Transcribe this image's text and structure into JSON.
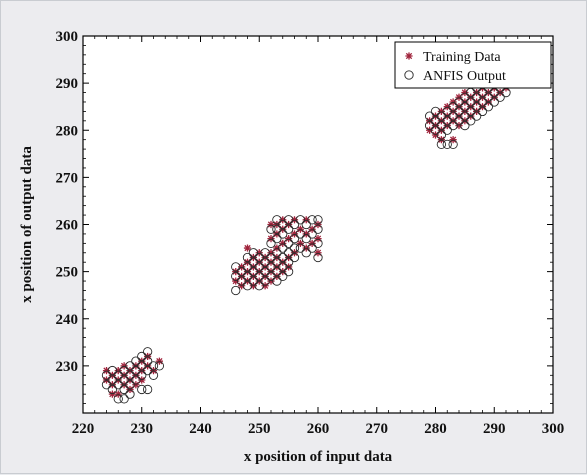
{
  "chart_data": {
    "type": "scatter",
    "xlabel": "x position of input data",
    "ylabel": "x position of output data",
    "xlim": [
      220,
      300
    ],
    "ylim": [
      220,
      300
    ],
    "xticks": [
      220,
      230,
      240,
      250,
      260,
      270,
      280,
      290,
      300
    ],
    "yticks": [
      230,
      240,
      250,
      260,
      270,
      280,
      290,
      300
    ],
    "grid": false,
    "legend_position": "top-right",
    "series": [
      {
        "name": "Training Data",
        "marker": "asterisk",
        "color": "#a0243c",
        "points": [
          [
            224,
            229
          ],
          [
            224,
            227
          ],
          [
            225,
            226
          ],
          [
            225,
            228
          ],
          [
            226,
            227
          ],
          [
            226,
            229
          ],
          [
            227,
            226
          ],
          [
            227,
            228
          ],
          [
            227,
            230
          ],
          [
            228,
            227
          ],
          [
            228,
            229
          ],
          [
            229,
            228
          ],
          [
            229,
            230
          ],
          [
            229,
            226
          ],
          [
            230,
            229
          ],
          [
            230,
            231
          ],
          [
            230,
            227
          ],
          [
            231,
            230
          ],
          [
            231,
            232
          ],
          [
            232,
            229
          ],
          [
            233,
            231
          ],
          [
            225,
            224
          ],
          [
            226,
            224
          ],
          [
            228,
            225
          ],
          [
            246,
            248
          ],
          [
            246,
            250
          ],
          [
            247,
            247
          ],
          [
            247,
            249
          ],
          [
            247,
            251
          ],
          [
            248,
            248
          ],
          [
            248,
            250
          ],
          [
            248,
            252
          ],
          [
            248,
            255
          ],
          [
            249,
            247
          ],
          [
            249,
            249
          ],
          [
            249,
            251
          ],
          [
            249,
            253
          ],
          [
            250,
            248
          ],
          [
            250,
            250
          ],
          [
            250,
            252
          ],
          [
            250,
            254
          ],
          [
            251,
            247
          ],
          [
            251,
            249
          ],
          [
            251,
            251
          ],
          [
            251,
            253
          ],
          [
            252,
            248
          ],
          [
            252,
            250
          ],
          [
            252,
            252
          ],
          [
            252,
            254
          ],
          [
            252,
            257
          ],
          [
            252,
            260
          ],
          [
            253,
            249
          ],
          [
            253,
            251
          ],
          [
            253,
            253
          ],
          [
            253,
            255
          ],
          [
            253,
            258
          ],
          [
            253,
            260
          ],
          [
            254,
            250
          ],
          [
            254,
            252
          ],
          [
            254,
            256
          ],
          [
            254,
            259
          ],
          [
            254,
            261
          ],
          [
            255,
            251
          ],
          [
            255,
            253
          ],
          [
            255,
            257
          ],
          [
            255,
            260
          ],
          [
            256,
            254
          ],
          [
            256,
            258
          ],
          [
            256,
            261
          ],
          [
            257,
            256
          ],
          [
            257,
            259
          ],
          [
            258,
            255
          ],
          [
            258,
            258
          ],
          [
            258,
            261
          ],
          [
            259,
            256
          ],
          [
            259,
            259
          ],
          [
            260,
            254
          ],
          [
            260,
            257
          ],
          [
            260,
            260
          ],
          [
            279,
            280
          ],
          [
            279,
            282
          ],
          [
            280,
            279
          ],
          [
            280,
            281
          ],
          [
            280,
            283
          ],
          [
            281,
            280
          ],
          [
            281,
            282
          ],
          [
            281,
            284
          ],
          [
            282,
            281
          ],
          [
            282,
            283
          ],
          [
            282,
            285
          ],
          [
            283,
            282
          ],
          [
            283,
            284
          ],
          [
            283,
            286
          ],
          [
            284,
            281
          ],
          [
            284,
            283
          ],
          [
            284,
            285
          ],
          [
            284,
            287
          ],
          [
            285,
            282
          ],
          [
            285,
            284
          ],
          [
            285,
            286
          ],
          [
            285,
            288
          ],
          [
            286,
            283
          ],
          [
            286,
            285
          ],
          [
            286,
            287
          ],
          [
            287,
            284
          ],
          [
            287,
            286
          ],
          [
            287,
            288
          ],
          [
            288,
            285
          ],
          [
            288,
            287
          ],
          [
            288,
            289
          ],
          [
            289,
            286
          ],
          [
            289,
            288
          ],
          [
            290,
            287
          ],
          [
            290,
            289
          ],
          [
            291,
            288
          ],
          [
            292,
            289
          ],
          [
            281,
            278
          ],
          [
            283,
            278
          ],
          [
            289,
            290
          ]
        ]
      },
      {
        "name": "ANFIS Output",
        "marker": "circle",
        "color": "#2a2a2a",
        "points": [
          [
            224,
            226
          ],
          [
            224,
            228
          ],
          [
            225,
            225
          ],
          [
            225,
            227
          ],
          [
            225,
            229
          ],
          [
            226,
            226
          ],
          [
            226,
            228
          ],
          [
            227,
            225
          ],
          [
            227,
            227
          ],
          [
            227,
            229
          ],
          [
            228,
            226
          ],
          [
            228,
            228
          ],
          [
            228,
            230
          ],
          [
            229,
            227
          ],
          [
            229,
            229
          ],
          [
            229,
            231
          ],
          [
            230,
            228
          ],
          [
            230,
            230
          ],
          [
            230,
            232
          ],
          [
            230,
            225
          ],
          [
            231,
            229
          ],
          [
            231,
            231
          ],
          [
            231,
            233
          ],
          [
            232,
            228
          ],
          [
            232,
            230
          ],
          [
            233,
            230
          ],
          [
            226,
            223
          ],
          [
            227,
            223
          ],
          [
            228,
            224
          ],
          [
            231,
            225
          ],
          [
            246,
            246
          ],
          [
            246,
            249
          ],
          [
            246,
            251
          ],
          [
            247,
            248
          ],
          [
            247,
            250
          ],
          [
            248,
            247
          ],
          [
            248,
            249
          ],
          [
            248,
            251
          ],
          [
            248,
            253
          ],
          [
            249,
            248
          ],
          [
            249,
            250
          ],
          [
            249,
            252
          ],
          [
            249,
            254
          ],
          [
            250,
            247
          ],
          [
            250,
            249
          ],
          [
            250,
            251
          ],
          [
            250,
            253
          ],
          [
            251,
            248
          ],
          [
            251,
            250
          ],
          [
            251,
            252
          ],
          [
            251,
            254
          ],
          [
            252,
            249
          ],
          [
            252,
            251
          ],
          [
            252,
            253
          ],
          [
            252,
            256
          ],
          [
            252,
            259
          ],
          [
            253,
            248
          ],
          [
            253,
            250
          ],
          [
            253,
            252
          ],
          [
            253,
            254
          ],
          [
            253,
            257
          ],
          [
            253,
            259
          ],
          [
            253,
            261
          ],
          [
            254,
            249
          ],
          [
            254,
            251
          ],
          [
            254,
            253
          ],
          [
            254,
            255
          ],
          [
            254,
            258
          ],
          [
            254,
            260
          ],
          [
            255,
            250
          ],
          [
            255,
            252
          ],
          [
            255,
            254
          ],
          [
            255,
            256
          ],
          [
            255,
            259
          ],
          [
            255,
            261
          ],
          [
            256,
            253
          ],
          [
            256,
            255
          ],
          [
            256,
            257
          ],
          [
            256,
            260
          ],
          [
            257,
            255
          ],
          [
            257,
            258
          ],
          [
            257,
            261
          ],
          [
            258,
            254
          ],
          [
            258,
            257
          ],
          [
            258,
            260
          ],
          [
            259,
            255
          ],
          [
            259,
            258
          ],
          [
            259,
            261
          ],
          [
            260,
            253
          ],
          [
            260,
            256
          ],
          [
            260,
            259
          ],
          [
            260,
            261
          ],
          [
            279,
            281
          ],
          [
            279,
            283
          ],
          [
            280,
            280
          ],
          [
            280,
            282
          ],
          [
            280,
            284
          ],
          [
            281,
            279
          ],
          [
            281,
            281
          ],
          [
            281,
            283
          ],
          [
            281,
            277
          ],
          [
            282,
            280
          ],
          [
            282,
            282
          ],
          [
            282,
            284
          ],
          [
            282,
            277
          ],
          [
            283,
            281
          ],
          [
            283,
            283
          ],
          [
            283,
            285
          ],
          [
            283,
            277
          ],
          [
            284,
            282
          ],
          [
            284,
            284
          ],
          [
            284,
            286
          ],
          [
            285,
            281
          ],
          [
            285,
            283
          ],
          [
            285,
            285
          ],
          [
            285,
            287
          ],
          [
            286,
            282
          ],
          [
            286,
            284
          ],
          [
            286,
            286
          ],
          [
            286,
            288
          ],
          [
            287,
            283
          ],
          [
            287,
            285
          ],
          [
            287,
            287
          ],
          [
            287,
            289
          ],
          [
            288,
            284
          ],
          [
            288,
            286
          ],
          [
            288,
            288
          ],
          [
            289,
            285
          ],
          [
            289,
            287
          ],
          [
            289,
            289
          ],
          [
            290,
            286
          ],
          [
            290,
            288
          ],
          [
            291,
            287
          ],
          [
            291,
            289
          ],
          [
            292,
            288
          ]
        ]
      }
    ]
  }
}
